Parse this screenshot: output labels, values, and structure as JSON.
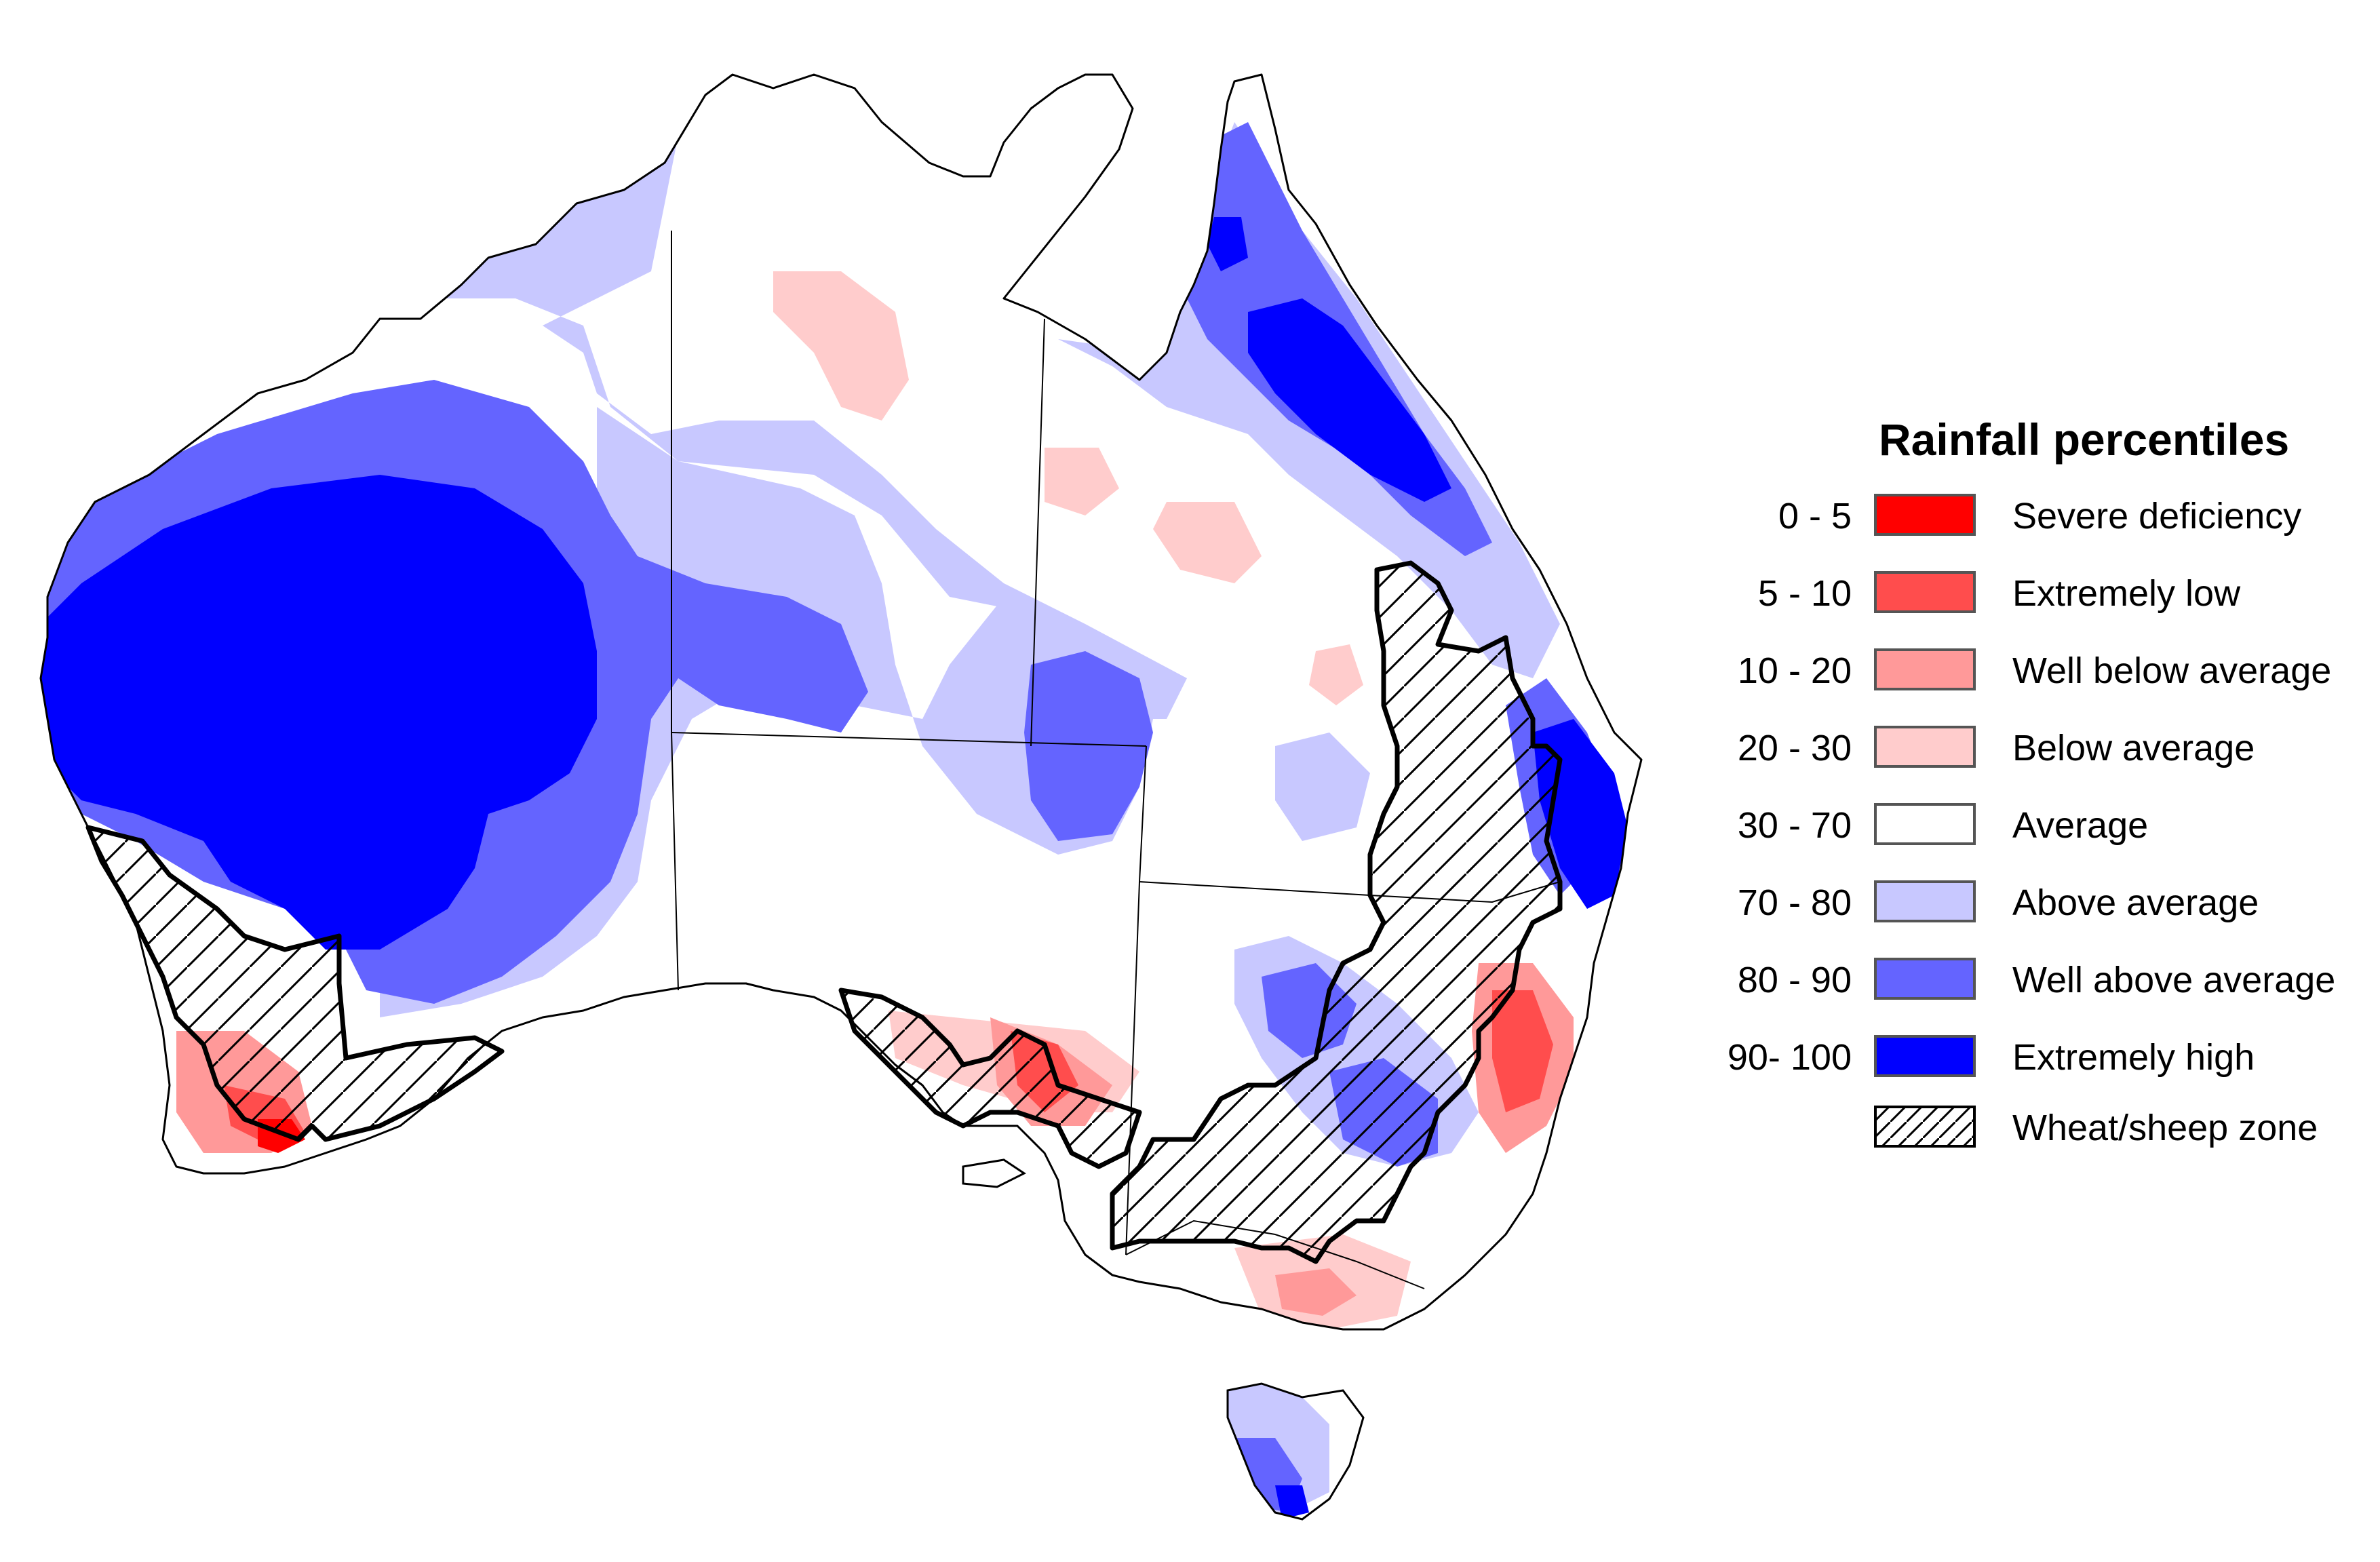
{
  "legend": {
    "title": "Rainfall percentiles",
    "items": [
      {
        "range": "0 - 5",
        "label": "Severe deficiency",
        "color": "#ff0000"
      },
      {
        "range": "5 - 10",
        "label": "Extremely low",
        "color": "#ff4d4d"
      },
      {
        "range": "10 - 20",
        "label": "Well below average",
        "color": "#ff9999"
      },
      {
        "range": "20 - 30",
        "label": "Below average",
        "color": "#ffcccc"
      },
      {
        "range": "30 - 70",
        "label": "Average",
        "color": "#ffffff"
      },
      {
        "range": "70 - 80",
        "label": "Above average",
        "color": "#c8c8ff"
      },
      {
        "range": "80 - 90",
        "label": "Well above average",
        "color": "#6464ff"
      },
      {
        "range": "90- 100",
        "label": "Extremely high",
        "color": "#0000ff"
      }
    ],
    "hatch_label": "Wheat/sheep zone"
  }
}
